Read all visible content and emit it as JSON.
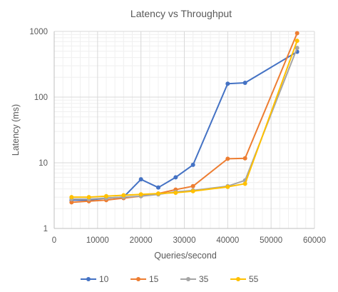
{
  "chart_data": {
    "type": "line",
    "title": "Latency vs Throughput",
    "xlabel": "Queries/second",
    "ylabel": "Latency (ms)",
    "xlim": [
      0,
      60000
    ],
    "ylim": [
      1,
      1000
    ],
    "y_scale": "log",
    "grid": true,
    "legend_position": "bottom",
    "x_ticks": [
      "0",
      "10000",
      "20000",
      "30000",
      "40000",
      "50000",
      "60000"
    ],
    "y_ticks": [
      "1",
      "10",
      "100",
      "1000"
    ],
    "x": [
      4000,
      8000,
      12000,
      16000,
      20000,
      24000,
      28000,
      32000,
      40000,
      44000,
      56000
    ],
    "series": [
      {
        "name": "10",
        "color": "#4472C4",
        "values": [
          2.7,
          2.7,
          2.9,
          3.0,
          5.6,
          4.2,
          6.0,
          9.3,
          160,
          165,
          490
        ]
      },
      {
        "name": "15",
        "color": "#ED7D31",
        "values": [
          2.5,
          2.6,
          2.7,
          2.9,
          3.1,
          3.4,
          3.9,
          4.4,
          11.5,
          11.7,
          940
        ]
      },
      {
        "name": "35",
        "color": "#A5A5A5",
        "values": [
          2.8,
          2.8,
          2.9,
          3.0,
          3.1,
          3.3,
          3.6,
          3.8,
          4.4,
          5.4,
          560
        ]
      },
      {
        "name": "55",
        "color": "#FFC000",
        "values": [
          3.0,
          3.0,
          3.1,
          3.2,
          3.3,
          3.4,
          3.5,
          3.7,
          4.3,
          4.8,
          720
        ]
      }
    ]
  }
}
